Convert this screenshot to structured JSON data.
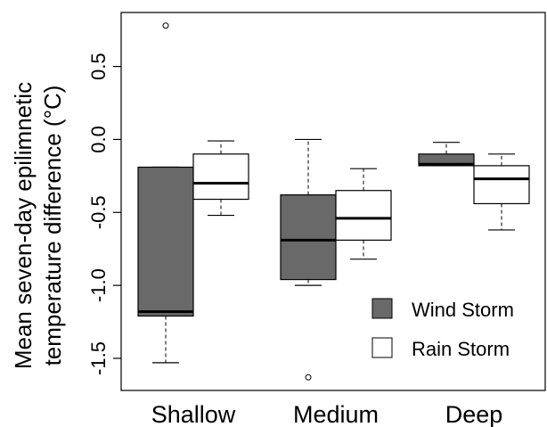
{
  "chart_data": {
    "type": "boxplot",
    "ylabel_lines": [
      "Mean seven-day epilimnetic",
      "temperature difference (°C)"
    ],
    "categories": [
      "Shallow",
      "Medium",
      "Deep"
    ],
    "ylim": [
      -1.72,
      0.87
    ],
    "yticks": [
      0.5,
      0.0,
      -0.5,
      -1.0,
      -1.5
    ],
    "ytick_labels": [
      "0.5",
      "0.0",
      "-0.5",
      "-1.0",
      "-1.5"
    ],
    "grid": false,
    "legend_position": "bottom-right",
    "series": [
      {
        "name": "Wind Storm",
        "color": "#696969",
        "boxes": [
          {
            "category": "Shallow",
            "whisker_low": -1.53,
            "q1": -1.21,
            "median": -1.18,
            "q3": -0.19,
            "whisker_high": -0.19,
            "outliers": [
              0.78
            ]
          },
          {
            "category": "Medium",
            "whisker_low": -1.0,
            "q1": -0.96,
            "median": -0.69,
            "q3": -0.38,
            "whisker_high": 0.0,
            "outliers": [
              -1.63
            ]
          },
          {
            "category": "Deep",
            "whisker_low": -0.18,
            "q1": -0.18,
            "median": -0.17,
            "q3": -0.1,
            "whisker_high": -0.02,
            "outliers": []
          }
        ]
      },
      {
        "name": "Rain Storm",
        "color": "#ffffff",
        "boxes": [
          {
            "category": "Shallow",
            "whisker_low": -0.52,
            "q1": -0.41,
            "median": -0.3,
            "q3": -0.1,
            "whisker_high": -0.01,
            "outliers": []
          },
          {
            "category": "Medium",
            "whisker_low": -0.82,
            "q1": -0.69,
            "median": -0.54,
            "q3": -0.35,
            "whisker_high": -0.2,
            "outliers": []
          },
          {
            "category": "Deep",
            "whisker_low": -0.62,
            "q1": -0.44,
            "median": -0.27,
            "q3": -0.18,
            "whisker_high": -0.1,
            "outliers": []
          }
        ]
      }
    ]
  }
}
